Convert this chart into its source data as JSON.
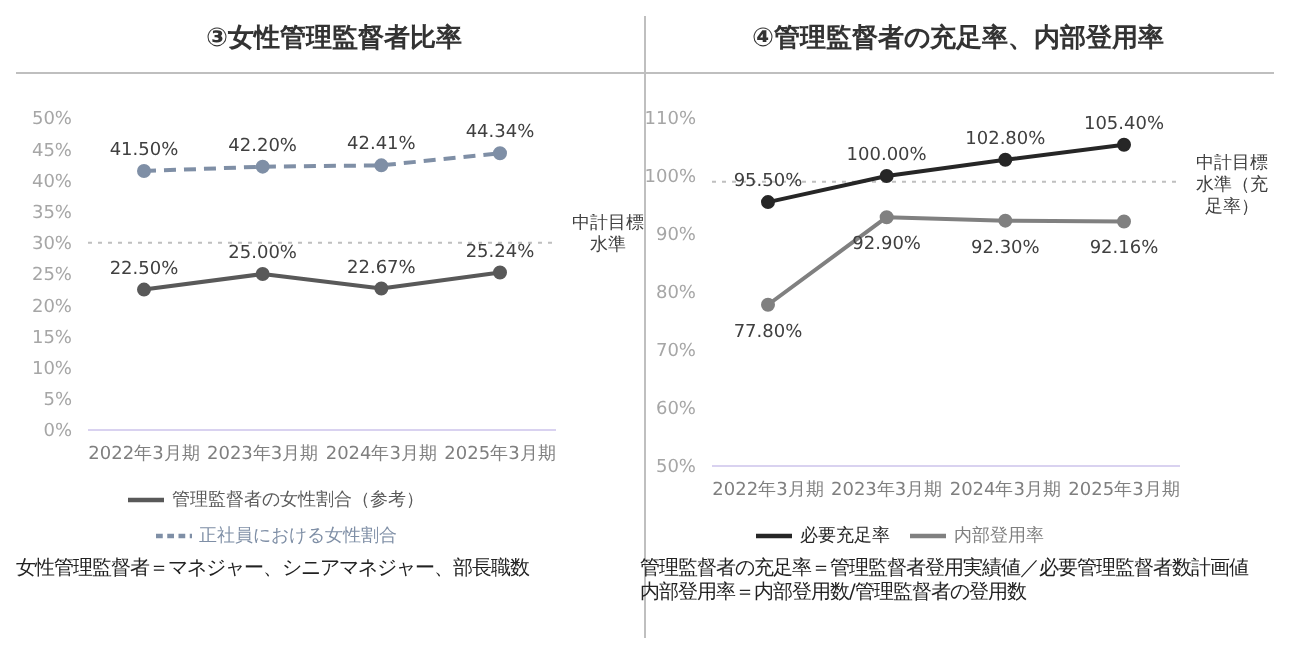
{
  "chart_data": [
    {
      "type": "line",
      "title": "③女性管理監督者比率",
      "categories": [
        "2022年3月期",
        "2023年3月期",
        "2024年3月期",
        "2025年3月期"
      ],
      "series": [
        {
          "name": "管理監督者の女性割合（参考）",
          "color": "#595959",
          "line_style": "solid",
          "values": [
            22.5,
            25.0,
            22.67,
            25.24
          ],
          "value_labels": [
            "22.50%",
            "25.00%",
            "22.67%",
            "25.24%"
          ]
        },
        {
          "name": "正社員における女性割合",
          "color": "#7f8fa6",
          "line_style": "dashed",
          "values": [
            41.5,
            42.2,
            42.41,
            44.34
          ],
          "value_labels": [
            "41.50%",
            "42.20%",
            "42.41%",
            "44.34%"
          ]
        }
      ],
      "ylim": [
        0,
        50
      ],
      "yticks": [
        {
          "value": 0,
          "label": "0%"
        },
        {
          "value": 5,
          "label": "5%"
        },
        {
          "value": 10,
          "label": "10%"
        },
        {
          "value": 15,
          "label": "15%"
        },
        {
          "value": 20,
          "label": "20%"
        },
        {
          "value": 25,
          "label": "25%"
        },
        {
          "value": 30,
          "label": "30%"
        },
        {
          "value": 35,
          "label": "35%"
        },
        {
          "value": 40,
          "label": "40%"
        },
        {
          "value": 45,
          "label": "45%"
        },
        {
          "value": 50,
          "label": "50%"
        }
      ],
      "ref_lines": [
        {
          "axis": "y",
          "value": 30,
          "label": "中計目標水準",
          "color": "#bfbfbf",
          "line_style": "dotted"
        }
      ],
      "marker": "circle",
      "grid": false,
      "legend": "bottom",
      "annotations": [
        "女性管理監督者＝マネジャー、シニアマネジャー、部長職数"
      ]
    },
    {
      "type": "line",
      "title": "④管理監督者の充足率、内部登用率",
      "categories": [
        "2022年3月期",
        "2023年3月期",
        "2024年3月期",
        "2025年3月期"
      ],
      "series": [
        {
          "name": "必要充足率",
          "color": "#262626",
          "line_style": "solid",
          "values": [
            95.5,
            100.0,
            102.8,
            105.4
          ],
          "value_labels": [
            "95.50%",
            "100.00%",
            "102.80%",
            "105.40%"
          ]
        },
        {
          "name": "内部登用率",
          "color": "#808080",
          "line_style": "solid",
          "values": [
            77.8,
            92.9,
            92.3,
            92.16
          ],
          "value_labels": [
            "77.80%",
            "92.90%",
            "92.30%",
            "92.16%"
          ]
        }
      ],
      "ylim": [
        50,
        110
      ],
      "yticks": [
        {
          "value": 50,
          "label": "50%"
        },
        {
          "value": 60,
          "label": "60%"
        },
        {
          "value": 70,
          "label": "70%"
        },
        {
          "value": 80,
          "label": "80%"
        },
        {
          "value": 90,
          "label": "90%"
        },
        {
          "value": 100,
          "label": "100%"
        },
        {
          "value": 110,
          "label": "110%"
        }
      ],
      "ref_lines": [
        {
          "axis": "y",
          "value": 99,
          "label": "中計目標水準（充足率）",
          "color": "#bfbfbf",
          "line_style": "dotted"
        }
      ],
      "marker": "circle",
      "grid": false,
      "legend": "bottom",
      "annotations": [
        "管理監督者の充足率＝管理監督者登用実績値／必要管理監督者数計画値",
        "内部登用率＝内部登用数/管理監督者の登用数"
      ]
    }
  ]
}
